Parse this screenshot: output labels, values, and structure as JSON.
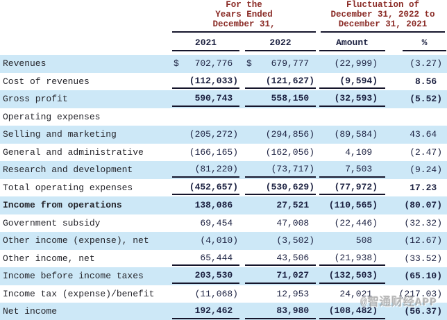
{
  "header": {
    "period_group": {
      "lines": [
        "For the",
        "Years Ended",
        "December 31,"
      ]
    },
    "fluctuation_group": {
      "lines": [
        "Fluctuation of",
        "December 31, 2022 to",
        "December 31, 2021"
      ]
    },
    "columns": [
      "2021",
      "2022",
      "Amount",
      "%"
    ]
  },
  "rows": [
    {
      "label": "Revenues",
      "v2021": "702,776",
      "v2022": "679,777",
      "amount": "(22,999)",
      "pct": "(3.27)",
      "dollar": true,
      "underline": false,
      "boldValues": false,
      "boldLabel": false
    },
    {
      "label": "Cost of revenues",
      "v2021": "(112,033)",
      "v2022": "(121,627)",
      "amount": "(9,594)",
      "pct": "8.56",
      "dollar": false,
      "underline": true,
      "boldValues": true,
      "boldLabel": false
    },
    {
      "label": "Gross profit",
      "v2021": "590,743",
      "v2022": "558,150",
      "amount": "(32,593)",
      "pct": "(5.52)",
      "dollar": false,
      "underline": true,
      "boldValues": true,
      "boldLabel": false
    },
    {
      "label": "Operating expenses",
      "v2021": "",
      "v2022": "",
      "amount": "",
      "pct": "",
      "dollar": false,
      "underline": false,
      "boldValues": false,
      "boldLabel": false
    },
    {
      "label": "Selling and marketing",
      "v2021": "(205,272)",
      "v2022": "(294,856)",
      "amount": "(89,584)",
      "pct": "43.64",
      "dollar": false,
      "underline": false,
      "boldValues": false,
      "boldLabel": false
    },
    {
      "label": "General and administrative",
      "v2021": "(166,165)",
      "v2022": "(162,056)",
      "amount": "4,109",
      "pct": "(2.47)",
      "dollar": false,
      "underline": false,
      "boldValues": false,
      "boldLabel": false
    },
    {
      "label": "Research and development",
      "v2021": "(81,220)",
      "v2022": "(73,717)",
      "amount": "7,503",
      "pct": "(9.24)",
      "dollar": false,
      "underline": true,
      "boldValues": false,
      "boldLabel": false
    },
    {
      "label": "Total operating expenses",
      "v2021": "(452,657)",
      "v2022": "(530,629)",
      "amount": "(77,972)",
      "pct": "17.23",
      "dollar": false,
      "underline": true,
      "boldValues": true,
      "boldLabel": false
    },
    {
      "label": "Income from operations",
      "v2021": "138,086",
      "v2022": "27,521",
      "amount": "(110,565)",
      "pct": "(80.07)",
      "dollar": false,
      "underline": false,
      "boldValues": true,
      "boldLabel": true
    },
    {
      "label": "Government subsidy",
      "v2021": "69,454",
      "v2022": "47,008",
      "amount": "(22,446)",
      "pct": "(32.32)",
      "dollar": false,
      "underline": false,
      "boldValues": false,
      "boldLabel": false
    },
    {
      "label": "Other income (expense), net",
      "v2021": "(4,010)",
      "v2022": "(3,502)",
      "amount": "508",
      "pct": "(12.67)",
      "dollar": false,
      "underline": false,
      "boldValues": false,
      "boldLabel": false
    },
    {
      "label": "Other income, net",
      "v2021": "65,444",
      "v2022": "43,506",
      "amount": "(21,938)",
      "pct": "(33.52)",
      "dollar": false,
      "underline": true,
      "boldValues": false,
      "boldLabel": false
    },
    {
      "label": "Income before income taxes",
      "v2021": "203,530",
      "v2022": "71,027",
      "amount": "(132,503)",
      "pct": "(65.10)",
      "dollar": false,
      "underline": true,
      "boldValues": true,
      "boldLabel": false
    },
    {
      "label": "Income tax (expense)/benefit",
      "v2021": "(11,068)",
      "v2022": "12,953",
      "amount": "24,021",
      "pct": "(217.03)",
      "dollar": false,
      "underline": false,
      "boldValues": false,
      "boldLabel": false
    },
    {
      "label": "Net income",
      "v2021": "192,462",
      "v2022": "83,980",
      "amount": "(108,482)",
      "pct": "(56.37)",
      "dollar": false,
      "underline": true,
      "boldValues": true,
      "boldLabel": false
    }
  ],
  "watermark": "@智通财经APP",
  "colors": {
    "accent_red": "#8a2b26",
    "navy": "#1b2040",
    "label": "#24242a",
    "row_blue": "#cde8f7",
    "line": "#15152b",
    "background": "#ffffff"
  }
}
